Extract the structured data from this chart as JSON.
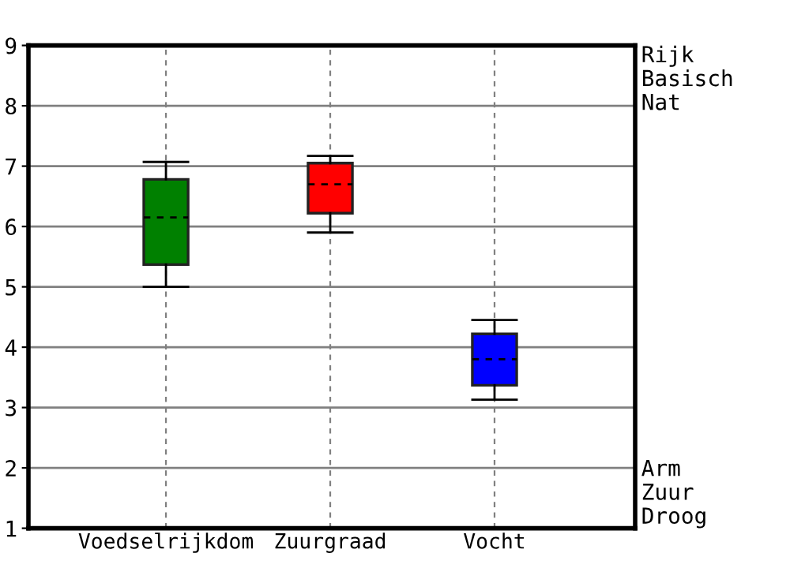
{
  "chart_data": {
    "type": "box",
    "categories": [
      "Voedselrijkdom",
      "Zuurgraad",
      "Vocht"
    ],
    "colors": [
      "#008000",
      "#ff0000",
      "#0000ff"
    ],
    "boxes": [
      {
        "low": 5.0,
        "q1": 5.37,
        "median": 6.15,
        "q3": 6.78,
        "high": 7.07
      },
      {
        "low": 5.9,
        "q1": 6.22,
        "median": 6.7,
        "q3": 7.05,
        "high": 7.17
      },
      {
        "low": 3.13,
        "q1": 3.37,
        "median": 3.8,
        "q3": 4.22,
        "high": 4.45
      }
    ],
    "ylim": [
      1,
      9
    ],
    "yticks": [
      1,
      2,
      3,
      4,
      5,
      6,
      7,
      8,
      9
    ],
    "grid": true,
    "annotations": [
      "Rijk\nBasisch\nNat",
      "Arm\nZuur\nDroog"
    ]
  }
}
